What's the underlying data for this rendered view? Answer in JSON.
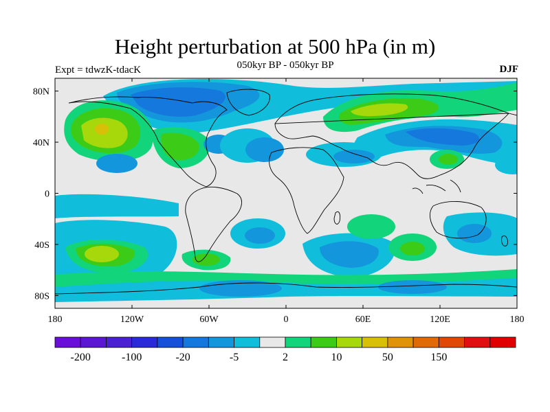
{
  "header": {
    "title": "Height perturbation at 500 hPa (in m)",
    "subtitle": "050kyr BP - 050kyr BP",
    "left_string": "Expt = tdwzK-tdacK",
    "right_string": "DJF"
  },
  "map": {
    "lon_ticks": [
      "180",
      "120W",
      "60W",
      "0",
      "60E",
      "120E",
      "180"
    ],
    "lat_ticks": [
      "80N",
      "40N",
      "0",
      "40S",
      "80S"
    ],
    "lon_range": [
      -180,
      180
    ],
    "lat_range": [
      -90,
      90
    ]
  },
  "colorbar": {
    "colors": [
      "#6a0fd8",
      "#5a16d0",
      "#4a20d0",
      "#2a2ad8",
      "#1450d8",
      "#1478dc",
      "#1496dc",
      "#10bedc",
      "#e8e8e8",
      "#12d47a",
      "#3ccc18",
      "#a6d80c",
      "#d8c008",
      "#e09208",
      "#e06a08",
      "#e04808",
      "#e01010",
      "#e00000"
    ],
    "labels": [
      "-200",
      "-100",
      "-20",
      "-5",
      "2",
      "10",
      "50",
      "150"
    ]
  },
  "fields": {
    "background": "#e8e8e8",
    "coast_color": "#000000"
  }
}
